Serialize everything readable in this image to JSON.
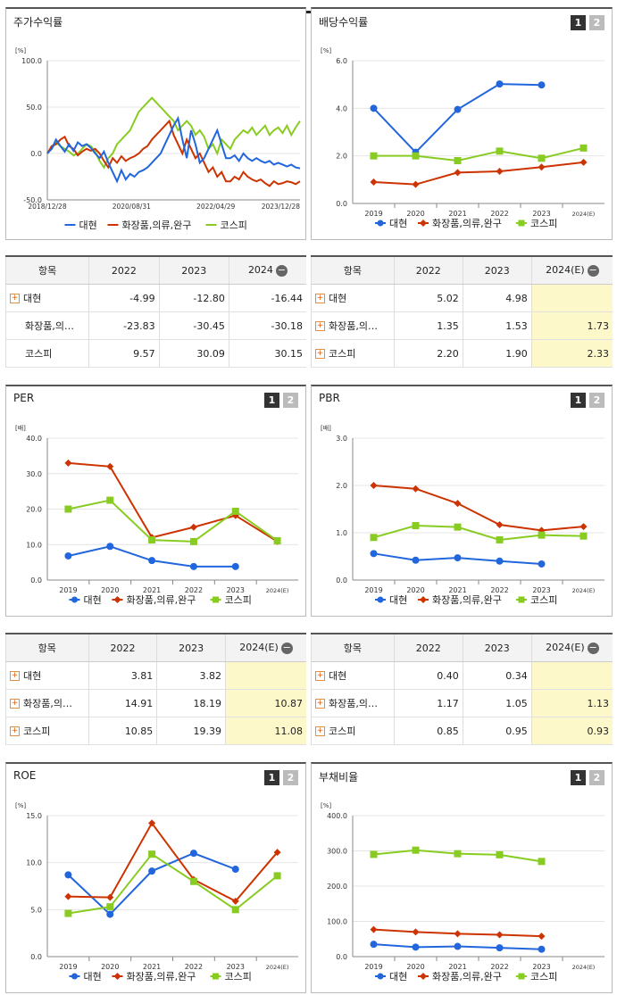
{
  "page": {
    "top_tab_labels": []
  },
  "panels": {
    "stock_return": {
      "title": "주가수익률",
      "unit": "[%]"
    },
    "dividend_yield": {
      "title": "배당수익률",
      "unit": "[%]",
      "btn1": "1",
      "btn2": "2"
    },
    "per": {
      "title": "PER",
      "unit": "[배]",
      "btn1": "1",
      "btn2": "2"
    },
    "pbr": {
      "title": "PBR",
      "unit": "[배]",
      "btn1": "1",
      "btn2": "2"
    },
    "roe": {
      "title": "ROE",
      "unit": "[%]",
      "btn1": "1",
      "btn2": "2"
    },
    "debt_ratio": {
      "title": "부채비율",
      "unit": "[%]",
      "btn1": "1",
      "btn2": "2"
    }
  },
  "legend": {
    "s1": "대현",
    "s2": "화장품,의류,완구",
    "s3": "코스피"
  },
  "colors": {
    "s1": "#2266dd",
    "s2": "#cc3300",
    "s3": "#88cc22"
  },
  "tables": {
    "stock_return": {
      "header": [
        "항목",
        "2022",
        "2023",
        "2024"
      ],
      "rows": [
        {
          "name": "대현",
          "plus": true,
          "values": [
            "-4.99",
            "-12.80",
            "-16.44"
          ]
        },
        {
          "name": "화장품,의…",
          "plus": false,
          "values": [
            "-23.83",
            "-30.45",
            "-30.18"
          ]
        },
        {
          "name": "코스피",
          "plus": false,
          "values": [
            "9.57",
            "30.09",
            "30.15"
          ]
        }
      ]
    },
    "dividend_yield": {
      "header": [
        "항목",
        "2022",
        "2023",
        "2024(E)"
      ],
      "rows": [
        {
          "name": "대현",
          "plus": true,
          "values": [
            "5.02",
            "4.98",
            ""
          ]
        },
        {
          "name": "화장품,의…",
          "plus": true,
          "values": [
            "1.35",
            "1.53",
            "1.73"
          ]
        },
        {
          "name": "코스피",
          "plus": true,
          "values": [
            "2.20",
            "1.90",
            "2.33"
          ]
        }
      ]
    },
    "per": {
      "header": [
        "항목",
        "2022",
        "2023",
        "2024(E)"
      ],
      "rows": [
        {
          "name": "대현",
          "plus": true,
          "values": [
            "3.81",
            "3.82",
            ""
          ]
        },
        {
          "name": "화장품,의…",
          "plus": true,
          "values": [
            "14.91",
            "18.19",
            "10.87"
          ]
        },
        {
          "name": "코스피",
          "plus": true,
          "values": [
            "10.85",
            "19.39",
            "11.08"
          ]
        }
      ]
    },
    "pbr": {
      "header": [
        "항목",
        "2022",
        "2023",
        "2024(E)"
      ],
      "rows": [
        {
          "name": "대현",
          "plus": true,
          "values": [
            "0.40",
            "0.34",
            ""
          ]
        },
        {
          "name": "화장품,의…",
          "plus": true,
          "values": [
            "1.17",
            "1.05",
            "1.13"
          ]
        },
        {
          "name": "코스피",
          "plus": true,
          "values": [
            "0.85",
            "0.95",
            "0.93"
          ]
        }
      ]
    }
  },
  "chart_data": [
    {
      "id": "stock_return",
      "type": "line",
      "ylim": [
        -50,
        100
      ],
      "yticks": [
        "100.0",
        "50.0",
        "0.0",
        "-50.0"
      ],
      "xticklabels": [
        "2018/12/28",
        "2020/08/31",
        "2022/04/29",
        "2023/12/28"
      ],
      "x_range": [
        "2018-12-28",
        "2023-12-28"
      ],
      "series": [
        {
          "name": "대현",
          "values": [
            0,
            5,
            15,
            8,
            2,
            10,
            3,
            12,
            8,
            10,
            6,
            0,
            -5,
            2,
            -10,
            -20,
            -30,
            -18,
            -28,
            -22,
            -25,
            -20,
            -18,
            -15,
            -10,
            -5,
            0,
            10,
            20,
            30,
            38,
            15,
            -5,
            25,
            10,
            -10,
            -5,
            5,
            15,
            25,
            10,
            -5,
            -5,
            -2,
            -8,
            0,
            -5,
            -8,
            -5,
            -8,
            -10,
            -8,
            -12,
            -10,
            -12,
            -14,
            -12,
            -15,
            -16
          ]
        },
        {
          "name": "화장품,의류,완구",
          "values": [
            0,
            8,
            10,
            15,
            18,
            8,
            5,
            -2,
            2,
            5,
            3,
            5,
            0,
            -8,
            -15,
            -5,
            -10,
            -3,
            -8,
            -5,
            -3,
            0,
            5,
            8,
            15,
            20,
            25,
            30,
            35,
            20,
            10,
            0,
            15,
            5,
            -5,
            0,
            -10,
            -20,
            -15,
            -25,
            -20,
            -30,
            -30,
            -25,
            -28,
            -20,
            -25,
            -28,
            -30,
            -28,
            -32,
            -35,
            -30,
            -33,
            -32,
            -30,
            -31,
            -33,
            -30
          ]
        },
        {
          "name": "코스피",
          "values": [
            0,
            5,
            12,
            8,
            5,
            2,
            -2,
            0,
            5,
            10,
            8,
            2,
            -8,
            -15,
            -5,
            0,
            10,
            15,
            20,
            25,
            35,
            45,
            50,
            55,
            60,
            55,
            50,
            45,
            40,
            35,
            25,
            30,
            35,
            30,
            20,
            25,
            18,
            5,
            10,
            0,
            15,
            10,
            5,
            15,
            20,
            25,
            22,
            28,
            20,
            25,
            30,
            20,
            25,
            28,
            22,
            30,
            20,
            28,
            35
          ]
        }
      ]
    },
    {
      "id": "dividend_yield",
      "type": "line",
      "categories": [
        "2019",
        "2020",
        "2021",
        "2022",
        "2023",
        "2024(E)"
      ],
      "ylim": [
        0,
        6
      ],
      "yticks": [
        "6.0",
        "4.0",
        "2.0",
        "0.0"
      ],
      "series": [
        {
          "name": "대현",
          "values": [
            4.0,
            2.15,
            3.95,
            5.02,
            4.98,
            null
          ]
        },
        {
          "name": "화장품,의류,완구",
          "values": [
            0.9,
            0.8,
            1.3,
            1.35,
            1.53,
            1.73
          ]
        },
        {
          "name": "코스피",
          "values": [
            2.0,
            2.0,
            1.8,
            2.2,
            1.9,
            2.33
          ]
        }
      ]
    },
    {
      "id": "per",
      "type": "line",
      "categories": [
        "2019",
        "2020",
        "2021",
        "2022",
        "2023",
        "2024(E)"
      ],
      "ylim": [
        0,
        40
      ],
      "yticks": [
        "40.0",
        "30.0",
        "20.0",
        "10.0",
        "0.0"
      ],
      "series": [
        {
          "name": "대현",
          "values": [
            6.8,
            9.5,
            5.5,
            3.81,
            3.82,
            null
          ]
        },
        {
          "name": "화장품,의류,완구",
          "values": [
            33.0,
            32.0,
            12.0,
            14.91,
            18.19,
            10.87
          ]
        },
        {
          "name": "코스피",
          "values": [
            20.0,
            22.5,
            11.3,
            10.85,
            19.39,
            11.08
          ]
        }
      ]
    },
    {
      "id": "pbr",
      "type": "line",
      "categories": [
        "2019",
        "2020",
        "2021",
        "2022",
        "2023",
        "2024(E)"
      ],
      "ylim": [
        0,
        3
      ],
      "yticks": [
        "3.0",
        "2.0",
        "1.0",
        "0.0"
      ],
      "series": [
        {
          "name": "대현",
          "values": [
            0.56,
            0.42,
            0.47,
            0.4,
            0.34,
            null
          ]
        },
        {
          "name": "화장품,의류,완구",
          "values": [
            2.0,
            1.93,
            1.62,
            1.17,
            1.05,
            1.13
          ]
        },
        {
          "name": "코스피",
          "values": [
            0.9,
            1.15,
            1.12,
            0.85,
            0.95,
            0.93
          ]
        }
      ]
    },
    {
      "id": "roe",
      "type": "line",
      "categories": [
        "2019",
        "2020",
        "2021",
        "2022",
        "2023",
        "2024(E)"
      ],
      "ylim": [
        0,
        15
      ],
      "yticks": [
        "15.0",
        "10.0",
        "5.0",
        "0.0"
      ],
      "series": [
        {
          "name": "대현",
          "values": [
            8.7,
            4.5,
            9.1,
            11.0,
            9.3,
            null
          ]
        },
        {
          "name": "화장품,의류,완구",
          "values": [
            6.4,
            6.3,
            14.2,
            8.2,
            5.9,
            11.1
          ]
        },
        {
          "name": "코스피",
          "values": [
            4.6,
            5.3,
            10.9,
            8.0,
            5.0,
            8.6
          ]
        }
      ]
    },
    {
      "id": "debt_ratio",
      "type": "line",
      "categories": [
        "2019",
        "2020",
        "2021",
        "2022",
        "2023",
        "2024(E)"
      ],
      "ylim": [
        0,
        400
      ],
      "yticks": [
        "400.0",
        "300.0",
        "200.0",
        "100.0",
        "0.0"
      ],
      "series": [
        {
          "name": "대현",
          "values": [
            35,
            27,
            29,
            25,
            21,
            null
          ]
        },
        {
          "name": "화장품,의류,완구",
          "values": [
            77,
            70,
            65,
            62,
            58,
            null
          ]
        },
        {
          "name": "코스피",
          "values": [
            290,
            302,
            292,
            289,
            270,
            null
          ]
        }
      ]
    }
  ]
}
